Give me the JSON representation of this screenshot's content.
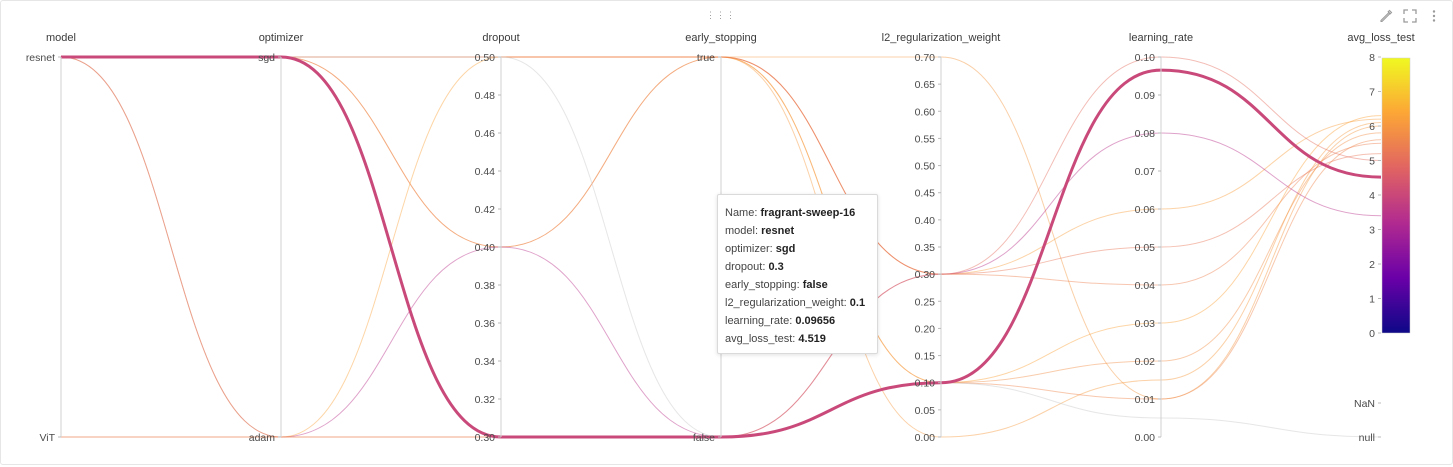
{
  "tooltip": {
    "rows": [
      {
        "label": "Name",
        "value": "fragrant-sweep-16"
      },
      {
        "label": "model",
        "value": "resnet"
      },
      {
        "label": "optimizer",
        "value": "sgd"
      },
      {
        "label": "dropout",
        "value": "0.3"
      },
      {
        "label": "early_stopping",
        "value": "false"
      },
      {
        "label": "l2_regularization_weight",
        "value": "0.1"
      },
      {
        "label": "learning_rate",
        "value": "0.09656"
      },
      {
        "label": "avg_loss_test",
        "value": "4.519"
      }
    ]
  },
  "toolbar": {
    "drag_handle": "⋮⋮⋮",
    "edit_icon": "pencil-icon",
    "fullscreen_icon": "fullscreen-icon",
    "menu_icon": "kebab-menu-icon"
  },
  "chart_data": {
    "type": "parallel_coordinates",
    "axes": [
      {
        "key": "model",
        "label": "model",
        "kind": "categorical",
        "categories": [
          "ViT",
          "resnet"
        ]
      },
      {
        "key": "optimizer",
        "label": "optimizer",
        "kind": "categorical",
        "categories": [
          "adam",
          "sgd"
        ]
      },
      {
        "key": "dropout",
        "label": "dropout",
        "kind": "numeric",
        "range": [
          0.3,
          0.5
        ],
        "ticks": [
          "0.30",
          "0.32",
          "0.34",
          "0.36",
          "0.38",
          "0.40",
          "0.42",
          "0.44",
          "0.46",
          "0.48",
          "0.50"
        ]
      },
      {
        "key": "early_stopping",
        "label": "early_stopping",
        "kind": "categorical",
        "categories": [
          "false",
          "true"
        ]
      },
      {
        "key": "l2_regularization_weight",
        "label": "l2_regularization_weight",
        "kind": "numeric",
        "range": [
          0,
          0.7
        ],
        "ticks": [
          "0.00",
          "0.05",
          "0.10",
          "0.15",
          "0.20",
          "0.25",
          "0.30",
          "0.35",
          "0.40",
          "0.45",
          "0.50",
          "0.55",
          "0.60",
          "0.65",
          "0.70"
        ]
      },
      {
        "key": "learning_rate",
        "label": "learning_rate",
        "kind": "numeric",
        "range": [
          0,
          0.1
        ],
        "ticks": [
          "0.00",
          "0.01",
          "0.02",
          "0.03",
          "0.04",
          "0.05",
          "0.06",
          "0.07",
          "0.08",
          "0.09",
          "0.10"
        ]
      },
      {
        "key": "avg_loss_test",
        "label": "avg_loss_test",
        "kind": "numeric",
        "range": [
          0,
          8
        ],
        "ticks": [
          "0",
          "1",
          "2",
          "3",
          "4",
          "5",
          "6",
          "7",
          "8"
        ],
        "extra_ticks": [
          "NaN",
          "null"
        ]
      }
    ],
    "colorscale": {
      "min": 0,
      "max": 8,
      "stops": [
        "#0d0887",
        "#6a00a8",
        "#b12a90",
        "#e16462",
        "#fca636",
        "#f0f921"
      ]
    },
    "highlighted_run": "fragrant-sweep-16",
    "runs": [
      {
        "name": "fragrant-sweep-16",
        "model": "resnet",
        "optimizer": "sgd",
        "dropout": 0.3,
        "early_stopping": "false",
        "l2_regularization_weight": 0.1,
        "learning_rate": 0.09656,
        "avg_loss_test": 4.519
      },
      {
        "name": "",
        "model": "resnet",
        "optimizer": "sgd",
        "dropout": 0.5,
        "early_stopping": "true",
        "l2_regularization_weight": 0.3,
        "learning_rate": 0.06,
        "avg_loss_test": 6.2
      },
      {
        "name": "",
        "model": "resnet",
        "optimizer": "sgd",
        "dropout": 0.5,
        "early_stopping": "true",
        "l2_regularization_weight": 0.1,
        "learning_rate": 0.02,
        "avg_loss_test": 5.8
      },
      {
        "name": "",
        "model": "resnet",
        "optimizer": "sgd",
        "dropout": 0.4,
        "early_stopping": "true",
        "l2_regularization_weight": 0.7,
        "learning_rate": 0.01,
        "avg_loss_test": 6.0
      },
      {
        "name": "",
        "model": "resnet",
        "optimizer": "sgd",
        "dropout": 0.4,
        "early_stopping": "true",
        "l2_regularization_weight": 0.3,
        "learning_rate": 0.04,
        "avg_loss_test": 5.5
      },
      {
        "name": "",
        "model": "resnet",
        "optimizer": "sgd",
        "dropout": 0.5,
        "early_stopping": "true",
        "l2_regularization_weight": 0.0,
        "learning_rate": 0.015,
        "avg_loss_test": 6.1
      },
      {
        "name": "",
        "model": "resnet",
        "optimizer": "adam",
        "dropout": 0.4,
        "early_stopping": "false",
        "l2_regularization_weight": 0.3,
        "learning_rate": 0.08,
        "avg_loss_test": 3.4
      },
      {
        "name": "",
        "model": "resnet",
        "optimizer": "adam",
        "dropout": 0.5,
        "early_stopping": "true",
        "l2_regularization_weight": 0.1,
        "learning_rate": 0.03,
        "avg_loss_test": 6.3
      },
      {
        "name": "",
        "model": "ViT",
        "optimizer": "adam",
        "dropout": 0.3,
        "early_stopping": "false",
        "l2_regularization_weight": 0.3,
        "learning_rate": 0.05,
        "avg_loss_test": 5.2
      },
      {
        "name": "",
        "model": "ViT",
        "optimizer": "adam",
        "dropout": 0.3,
        "early_stopping": "false",
        "l2_regularization_weight": 0.1,
        "learning_rate": 0.01,
        "avg_loss_test": 5.6
      },
      {
        "name": "",
        "model": "resnet",
        "optimizer": "sgd",
        "dropout": 0.5,
        "early_stopping": "true",
        "l2_regularization_weight": 0.3,
        "learning_rate": 0.1,
        "avg_loss_test": 5.0
      },
      {
        "name": "",
        "model": "resnet",
        "optimizer": "sgd",
        "dropout": 0.5,
        "early_stopping": "false",
        "l2_regularization_weight": 0.1,
        "learning_rate": 0.005,
        "avg_loss_test": null
      }
    ]
  }
}
